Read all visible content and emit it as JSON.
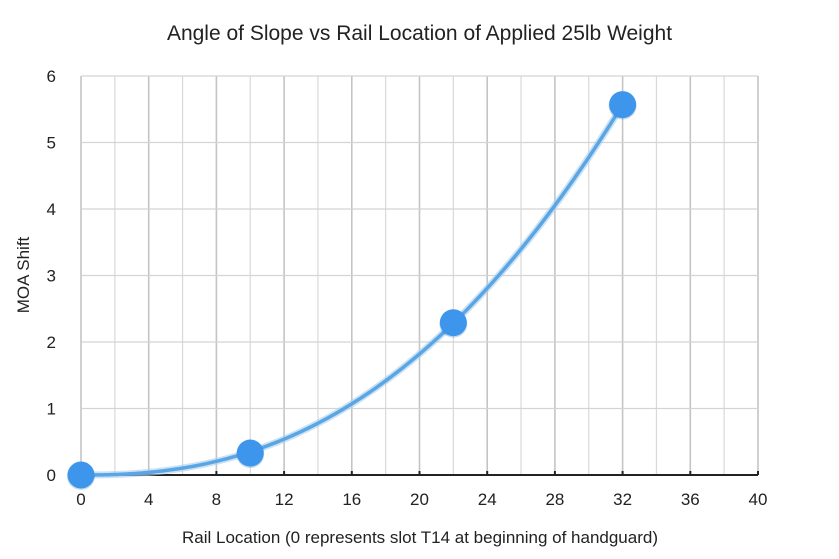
{
  "chart_data": {
    "type": "scatter",
    "title": "Angle of Slope vs Rail Location of Applied 25lb Weight",
    "xlabel": "Rail Location (0 represents slot T14 at beginning of handguard)",
    "ylabel": "MOA Shift",
    "xlim": [
      0,
      40
    ],
    "ylim": [
      0,
      6
    ],
    "x_ticks": [
      0,
      4,
      8,
      12,
      16,
      20,
      24,
      28,
      32,
      36,
      40
    ],
    "y_ticks": [
      0,
      1,
      2,
      3,
      4,
      5,
      6
    ],
    "grid": true,
    "x_minor_grid_step": 2,
    "legend": null,
    "series": [
      {
        "name": "MOA Shift",
        "color": "#3d95ec",
        "points": [
          {
            "x": 0,
            "y": 0
          },
          {
            "x": 10,
            "y": 0.33
          },
          {
            "x": 22,
            "y": 2.29
          },
          {
            "x": 32,
            "y": 5.57
          }
        ],
        "trendline": {
          "type": "power",
          "formula": "y = 5.57*(x/32)^2.38",
          "color": "#5aa6e4"
        }
      }
    ]
  }
}
